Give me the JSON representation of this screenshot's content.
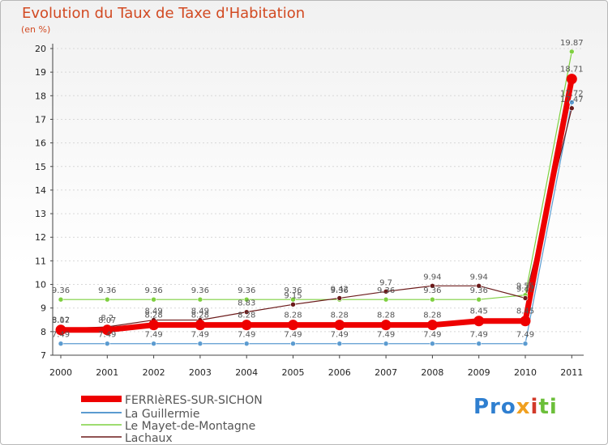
{
  "header": {
    "title": "Evolution du Taux de Taxe d'Habitation",
    "unit": "(en %)"
  },
  "brand": {
    "part1": "Pro",
    "part2": "x",
    "part3": "i",
    "part4": "ti"
  },
  "chart_data": {
    "type": "line",
    "title": "Evolution du Taux de Taxe d'Habitation",
    "ylabel": "(en %)",
    "xlabel": "",
    "x": [
      "2000",
      "2001",
      "2002",
      "2003",
      "2004",
      "2005",
      "2006",
      "2007",
      "2008",
      "2009",
      "2010",
      "2011"
    ],
    "ylim": [
      7,
      20
    ],
    "yticks": [
      "7",
      "8",
      "9",
      "10",
      "11",
      "12",
      "13",
      "14",
      "15",
      "16",
      "17",
      "18",
      "19",
      "20"
    ],
    "grid": true,
    "legend_position": "bottom-left",
    "series": [
      {
        "name": "FERRIèRES-SUR-SICHON",
        "color": "#ee0000",
        "values": [
          8.07,
          8.07,
          8.28,
          8.28,
          8.28,
          8.28,
          8.28,
          8.28,
          8.28,
          8.45,
          8.45,
          18.71
        ],
        "labels": [
          "8.07",
          "8.07",
          "8.28",
          "8.28",
          "8.28",
          "8.28",
          "8.28",
          "8.28",
          "8.28",
          "8.45",
          "8.45",
          "18.71"
        ]
      },
      {
        "name": "La Guillermie",
        "color": "#5b9bd0",
        "values": [
          7.49,
          7.49,
          7.49,
          7.49,
          7.49,
          7.49,
          7.49,
          7.49,
          7.49,
          7.49,
          7.49,
          17.72
        ],
        "labels": [
          "7.49",
          "7.49",
          "7.49",
          "7.49",
          "7.49",
          "7.49",
          "7.49",
          "7.49",
          "7.49",
          "7.49",
          "7.49",
          "17.72"
        ]
      },
      {
        "name": "Le Mayet-de-Montagne",
        "color": "#7fd040",
        "values": [
          9.36,
          9.36,
          9.36,
          9.36,
          9.36,
          9.36,
          9.36,
          9.36,
          9.36,
          9.36,
          9.55,
          19.87
        ],
        "labels": [
          "9.36",
          "9.36",
          "9.36",
          "9.36",
          "9.36",
          "9.36",
          "9.36",
          "9.36",
          "9.36",
          "9.36",
          "9.55",
          "19.87"
        ]
      },
      {
        "name": "Lachaux",
        "color": "#6b1a1a",
        "values": [
          8.12,
          8.2,
          8.49,
          8.49,
          8.83,
          9.15,
          9.42,
          9.7,
          9.94,
          9.94,
          9.42,
          17.47
        ],
        "labels": [
          "8.12",
          "8.2",
          "8.49",
          "8.49",
          "8.83",
          "9.15",
          "9.42",
          "9.7",
          "9.94",
          "9.94",
          "9.42",
          "17.47"
        ]
      }
    ]
  }
}
